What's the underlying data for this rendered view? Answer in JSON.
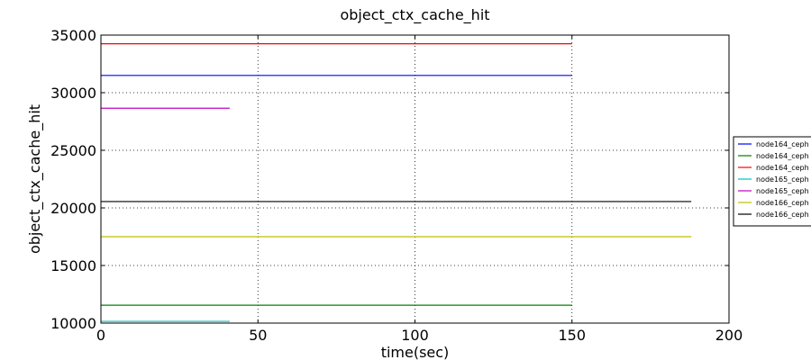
{
  "chart_data": {
    "type": "line",
    "title": "object_ctx_cache_hit",
    "xlabel": "time(sec)",
    "ylabel": "object_ctx_cache_hit",
    "xlim": [
      0,
      200
    ],
    "ylim": [
      10000,
      35000
    ],
    "xticks": [
      0,
      50,
      100,
      150,
      200
    ],
    "yticks": [
      10000,
      15000,
      20000,
      25000,
      30000,
      35000
    ],
    "grid": true,
    "legend_position": "right",
    "series": [
      {
        "name": "node164_ceph",
        "color": "#0000ff",
        "x": [
          0,
          150
        ],
        "y": [
          31500,
          31500
        ]
      },
      {
        "name": "node164_ceph",
        "color": "#008000",
        "x": [
          0,
          150
        ],
        "y": [
          11550,
          11550
        ]
      },
      {
        "name": "node164_ceph",
        "color": "#ff0000",
        "x": [
          0,
          150
        ],
        "y": [
          34250,
          34250
        ]
      },
      {
        "name": "node165_ceph",
        "color": "#00bfbf",
        "x": [
          0,
          41
        ],
        "y": [
          10150,
          10150
        ]
      },
      {
        "name": "node165_ceph",
        "color": "#bf00bf",
        "x": [
          0,
          41
        ],
        "y": [
          28650,
          28650
        ]
      },
      {
        "name": "node166_ceph",
        "color": "#bfbf00",
        "x": [
          0,
          188
        ],
        "y": [
          17500,
          17500
        ]
      },
      {
        "name": "node166_ceph",
        "color": "#000000",
        "x": [
          0,
          188
        ],
        "y": [
          20550,
          20550
        ]
      }
    ]
  }
}
